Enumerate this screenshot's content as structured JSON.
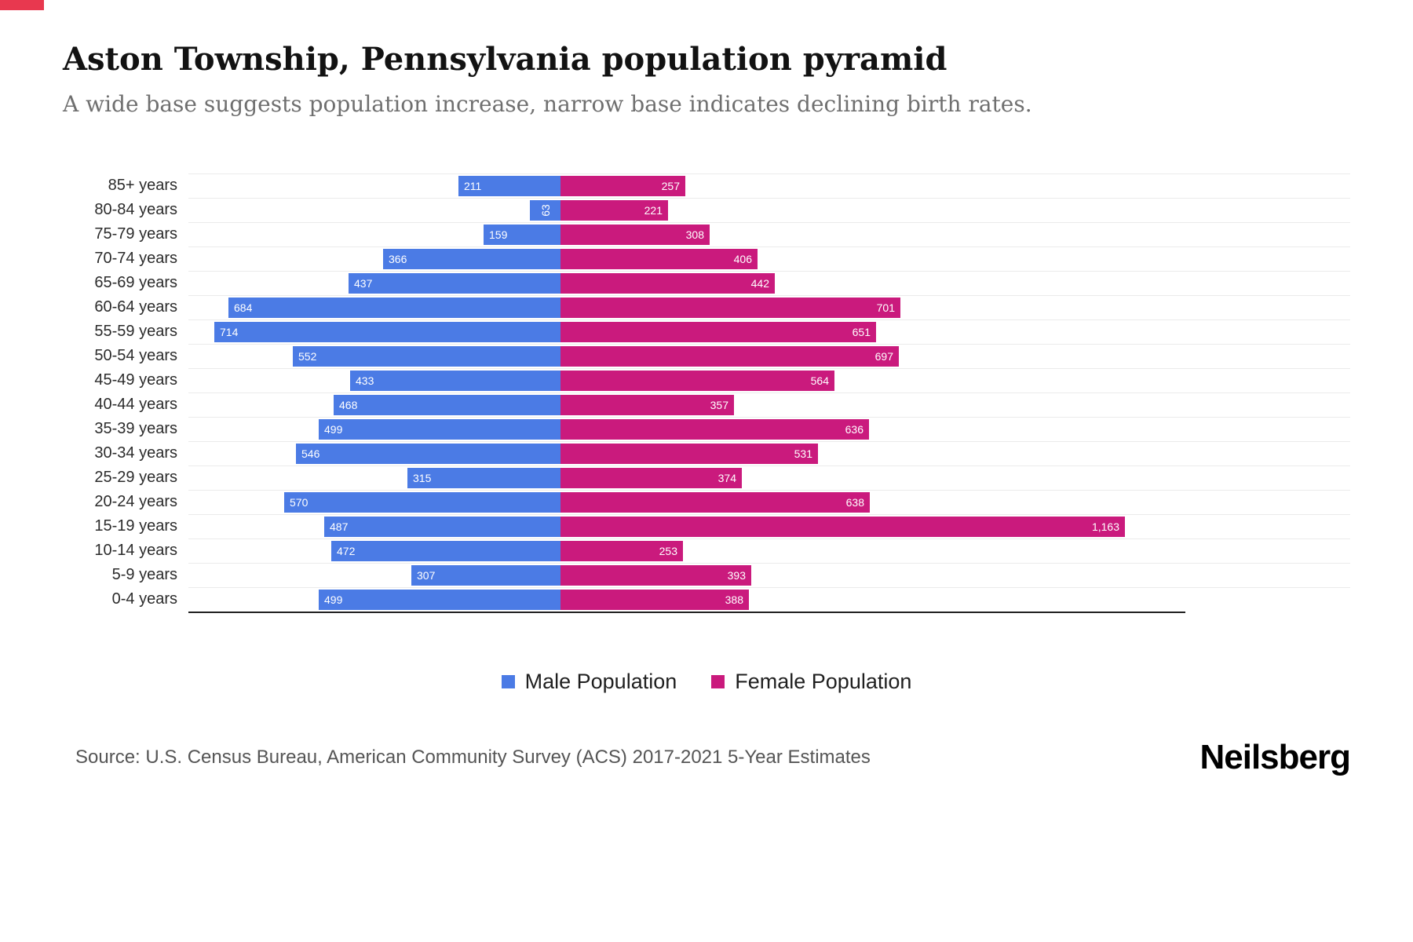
{
  "header": {
    "title": "Aston Township, Pennsylvania population pyramid",
    "subtitle": "A wide base suggests population increase, narrow base indicates declining birth rates."
  },
  "colors": {
    "male": "#4b7be5",
    "female": "#ca1a7d",
    "brand_red": "#e8384f",
    "gridline": "#ebebeb",
    "axis": "#1f1f1f"
  },
  "chart_data": {
    "type": "bar",
    "subtype": "population-pyramid",
    "orientation": "horizontal",
    "title": "Aston Township, Pennsylvania population pyramid",
    "categories": [
      "85+ years",
      "80-84 years",
      "75-79 years",
      "70-74 years",
      "65-69 years",
      "60-64 years",
      "55-59 years",
      "50-54 years",
      "45-49 years",
      "40-44 years",
      "35-39 years",
      "30-34 years",
      "25-29 years",
      "20-24 years",
      "15-19 years",
      "10-14 years",
      "5-9 years",
      "0-4 years"
    ],
    "series": [
      {
        "name": "Male Population",
        "color": "#4b7be5",
        "values": [
          211,
          63,
          159,
          366,
          437,
          684,
          714,
          552,
          433,
          468,
          499,
          546,
          315,
          570,
          487,
          472,
          307,
          499
        ]
      },
      {
        "name": "Female Population",
        "color": "#ca1a7d",
        "values": [
          257,
          221,
          308,
          406,
          442,
          701,
          651,
          697,
          564,
          357,
          636,
          531,
          374,
          638,
          1163,
          253,
          393,
          388
        ]
      }
    ],
    "value_labels": "inside-ends, white",
    "legend_position": "bottom",
    "grid": "horizontal-light"
  },
  "footer": {
    "source": "Source: U.S. Census Bureau, American Community Survey (ACS) 2017-2021 5-Year Estimates",
    "brand": "Neilsberg"
  }
}
